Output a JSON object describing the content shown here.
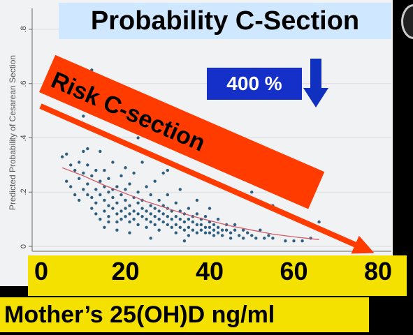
{
  "title": "Probability C-Section",
  "percent_badge": "400 %",
  "banner_text": "Risk C-section",
  "ylabel": "Predicted Probability of Cesarean Section",
  "xlabel": "Mother’s 25(OH)D ng/ml",
  "colors": {
    "title_bg": "#cfe8ff",
    "badge_bg": "#1530c8",
    "banner": "#ff3b00",
    "arrow_down": "#1030c0",
    "tick_band": "#f5e100",
    "points": "#2f5f7f",
    "fit_line": "#d05a6a"
  },
  "chart_data": {
    "type": "scatter",
    "title": "",
    "xlabel": "Mother’s 25(OH)D ng/ml",
    "ylabel": "Predicted Probability of Cesarean Section",
    "xlim": [
      0,
      80
    ],
    "ylim": [
      0,
      0.8
    ],
    "x_ticks": [
      0,
      20,
      40,
      60,
      80
    ],
    "y_ticks": [
      0,
      0.2,
      0.4,
      0.6,
      0.8
    ],
    "y_tick_labels": [
      "0",
      ".2",
      ".4",
      ".6",
      ".8"
    ],
    "grid": "horizontal",
    "points": [
      [
        5,
        0.33
      ],
      [
        6,
        0.34
      ],
      [
        6,
        0.24
      ],
      [
        7,
        0.22
      ],
      [
        7,
        0.3
      ],
      [
        8,
        0.28
      ],
      [
        8,
        0.19
      ],
      [
        9,
        0.25
      ],
      [
        9,
        0.17
      ],
      [
        9,
        0.31
      ],
      [
        10,
        0.27
      ],
      [
        10,
        0.21
      ],
      [
        10,
        0.35
      ],
      [
        11,
        0.23
      ],
      [
        11,
        0.19
      ],
      [
        11,
        0.36
      ],
      [
        11,
        0.3
      ],
      [
        12,
        0.26
      ],
      [
        12,
        0.18
      ],
      [
        12,
        0.14
      ],
      [
        12,
        0.65
      ],
      [
        13,
        0.21
      ],
      [
        13,
        0.28
      ],
      [
        13,
        0.16
      ],
      [
        13,
        0.12
      ],
      [
        14,
        0.24
      ],
      [
        14,
        0.19
      ],
      [
        14,
        0.35
      ],
      [
        14,
        0.1
      ],
      [
        15,
        0.22
      ],
      [
        15,
        0.17
      ],
      [
        15,
        0.13
      ],
      [
        15,
        0.28
      ],
      [
        16,
        0.2
      ],
      [
        16,
        0.15
      ],
      [
        16,
        0.11
      ],
      [
        16,
        0.25
      ],
      [
        16,
        0.09
      ],
      [
        17,
        0.21
      ],
      [
        17,
        0.18
      ],
      [
        17,
        0.14
      ],
      [
        17,
        0.31
      ],
      [
        18,
        0.16
      ],
      [
        18,
        0.12
      ],
      [
        18,
        0.22
      ],
      [
        18,
        0.09
      ],
      [
        19,
        0.19
      ],
      [
        19,
        0.13
      ],
      [
        19,
        0.26
      ],
      [
        19,
        0.1
      ],
      [
        20,
        0.17
      ],
      [
        20,
        0.14
      ],
      [
        20,
        0.11
      ],
      [
        20,
        0.29
      ],
      [
        20,
        0.21
      ],
      [
        21,
        0.15
      ],
      [
        21,
        0.12
      ],
      [
        21,
        0.09
      ],
      [
        21,
        0.23
      ],
      [
        22,
        0.18
      ],
      [
        22,
        0.13
      ],
      [
        22,
        0.1
      ],
      [
        22,
        0.27
      ],
      [
        23,
        0.16
      ],
      [
        23,
        0.12
      ],
      [
        23,
        0.08
      ],
      [
        23,
        0.2
      ],
      [
        24,
        0.14
      ],
      [
        24,
        0.11
      ],
      [
        24,
        0.31
      ],
      [
        24,
        0.17
      ],
      [
        25,
        0.13
      ],
      [
        25,
        0.1
      ],
      [
        25,
        0.22
      ],
      [
        25,
        0.07
      ],
      [
        26,
        0.15
      ],
      [
        26,
        0.12
      ],
      [
        26,
        0.09
      ],
      [
        26,
        0.19
      ],
      [
        27,
        0.14
      ],
      [
        27,
        0.11
      ],
      [
        27,
        0.08
      ],
      [
        27,
        0.24
      ],
      [
        28,
        0.13
      ],
      [
        28,
        0.1
      ],
      [
        28,
        0.17
      ],
      [
        28,
        0.06
      ],
      [
        29,
        0.12
      ],
      [
        29,
        0.09
      ],
      [
        29,
        0.15
      ],
      [
        29,
        0.27
      ],
      [
        30,
        0.11
      ],
      [
        30,
        0.08
      ],
      [
        30,
        0.14
      ],
      [
        30,
        0.19
      ],
      [
        31,
        0.1
      ],
      [
        31,
        0.07
      ],
      [
        31,
        0.13
      ],
      [
        32,
        0.11
      ],
      [
        32,
        0.08
      ],
      [
        32,
        0.16
      ],
      [
        32,
        0.05
      ],
      [
        33,
        0.1
      ],
      [
        33,
        0.07
      ],
      [
        33,
        0.13
      ],
      [
        33,
        0.21
      ],
      [
        34,
        0.09
      ],
      [
        34,
        0.06
      ],
      [
        34,
        0.12
      ],
      [
        35,
        0.1
      ],
      [
        35,
        0.07
      ],
      [
        35,
        0.14
      ],
      [
        35,
        0.04
      ],
      [
        36,
        0.09
      ],
      [
        36,
        0.06
      ],
      [
        36,
        0.11
      ],
      [
        37,
        0.08
      ],
      [
        37,
        0.05
      ],
      [
        37,
        0.12
      ],
      [
        37,
        0.17
      ],
      [
        38,
        0.08
      ],
      [
        38,
        0.06
      ],
      [
        38,
        0.1
      ],
      [
        39,
        0.07
      ],
      [
        39,
        0.05
      ],
      [
        39,
        0.11
      ],
      [
        40,
        0.07
      ],
      [
        40,
        0.05
      ],
      [
        40,
        0.09
      ],
      [
        40,
        0.14
      ],
      [
        41,
        0.06
      ],
      [
        41,
        0.04
      ],
      [
        41,
        0.08
      ],
      [
        42,
        0.07
      ],
      [
        42,
        0.05
      ],
      [
        42,
        0.1
      ],
      [
        43,
        0.06
      ],
      [
        43,
        0.04
      ],
      [
        44,
        0.06
      ],
      [
        44,
        0.08
      ],
      [
        45,
        0.05
      ],
      [
        45,
        0.03
      ],
      [
        46,
        0.06
      ],
      [
        46,
        0.08
      ],
      [
        47,
        0.04
      ],
      [
        48,
        0.06
      ],
      [
        48,
        0.03
      ],
      [
        49,
        0.05
      ],
      [
        50,
        0.04
      ],
      [
        50,
        0.2
      ],
      [
        51,
        0.03
      ],
      [
        52,
        0.06
      ],
      [
        53,
        0.03
      ],
      [
        54,
        0.04
      ],
      [
        55,
        0.03
      ],
      [
        55,
        0.15
      ],
      [
        58,
        0.02
      ],
      [
        60,
        0.02
      ],
      [
        62,
        0.02
      ],
      [
        64,
        0.03
      ],
      [
        66,
        0.09
      ],
      [
        23,
        0.4
      ],
      [
        10,
        0.48
      ],
      [
        27,
        0.33
      ],
      [
        30,
        0.28
      ],
      [
        15,
        0.07
      ],
      [
        18,
        0.06
      ],
      [
        21,
        0.05
      ],
      [
        34,
        0.02
      ],
      [
        26,
        0.03
      ]
    ],
    "fit_line": [
      [
        5,
        0.29
      ],
      [
        10,
        0.26
      ],
      [
        15,
        0.225
      ],
      [
        20,
        0.195
      ],
      [
        25,
        0.165
      ],
      [
        30,
        0.14
      ],
      [
        35,
        0.115
      ],
      [
        40,
        0.095
      ],
      [
        45,
        0.075
      ],
      [
        50,
        0.06
      ],
      [
        55,
        0.045
      ],
      [
        60,
        0.035
      ],
      [
        66,
        0.025
      ]
    ]
  }
}
